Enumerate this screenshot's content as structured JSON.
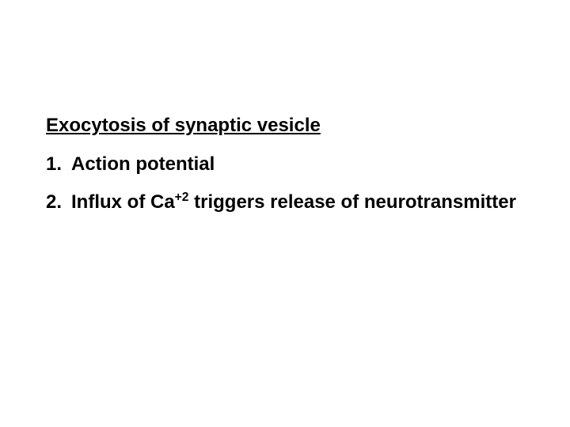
{
  "heading": "Exocytosis of synaptic vesicle",
  "items": [
    {
      "number": "1.",
      "text_before": "Action potential",
      "sup": "",
      "text_after": ""
    },
    {
      "number": "2.",
      "text_before": "Influx of Ca",
      "sup": "+2",
      "text_after": " triggers release of neurotransmitter"
    }
  ],
  "colors": {
    "background": "#ffffff",
    "text": "#000000"
  },
  "typography": {
    "font_family": "Arial",
    "heading_fontsize": 24,
    "item_fontsize": 24,
    "font_weight": "bold"
  }
}
